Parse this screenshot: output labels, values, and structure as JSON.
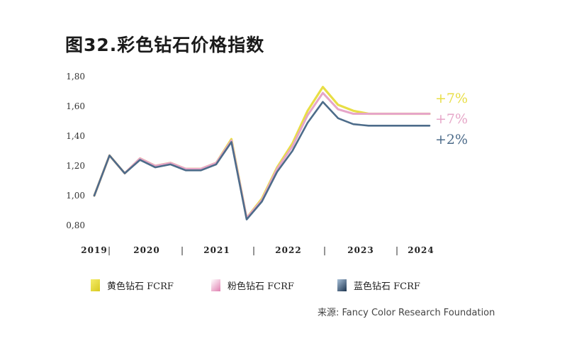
{
  "title": "图32.彩色钻石价格指数",
  "source": "来源: Fancy Color Research Foundation",
  "chart_data": {
    "type": "line",
    "ylim": [
      0.8,
      1.8
    ],
    "y_ticks": [
      "0,80",
      "1,00",
      "1,20",
      "1,40",
      "1,60",
      "1,80"
    ],
    "x_tick_labels": [
      "2019",
      "2020",
      "2021",
      "2022",
      "2023",
      "2024"
    ],
    "x_range": [
      2019,
      2024.5
    ],
    "x": [
      2019.0,
      2019.25,
      2019.5,
      2019.75,
      2020.0,
      2020.25,
      2020.5,
      2020.75,
      2021.0,
      2021.25,
      2021.5,
      2021.75,
      2022.0,
      2022.25,
      2022.5,
      2022.75,
      2023.0,
      2023.25,
      2023.5,
      2023.75,
      2024.0,
      2024.25,
      2024.5
    ],
    "series": [
      {
        "name": "黄色钻石 FCRF",
        "color": "#e8de45",
        "values": [
          1.0,
          1.27,
          1.15,
          1.25,
          1.2,
          1.22,
          1.18,
          1.18,
          1.22,
          1.38,
          0.85,
          0.98,
          1.19,
          1.35,
          1.57,
          1.73,
          1.61,
          1.57,
          1.55,
          1.55,
          1.55,
          1.55,
          1.55
        ],
        "end_label": "+7%"
      },
      {
        "name": "粉色钻石 FCRF",
        "color": "#e6a6c8",
        "values": [
          1.0,
          1.27,
          1.15,
          1.25,
          1.2,
          1.22,
          1.18,
          1.18,
          1.22,
          1.37,
          0.85,
          0.97,
          1.18,
          1.33,
          1.54,
          1.69,
          1.58,
          1.55,
          1.55,
          1.55,
          1.55,
          1.55,
          1.55
        ],
        "end_label": "+7%"
      },
      {
        "name": "蓝色钻石 FCRF",
        "color": "#4d6c8a",
        "values": [
          1.0,
          1.27,
          1.15,
          1.24,
          1.19,
          1.21,
          1.17,
          1.17,
          1.21,
          1.36,
          0.84,
          0.96,
          1.16,
          1.3,
          1.49,
          1.63,
          1.52,
          1.48,
          1.47,
          1.47,
          1.47,
          1.47,
          1.47
        ],
        "end_label": "+2%"
      }
    ]
  }
}
